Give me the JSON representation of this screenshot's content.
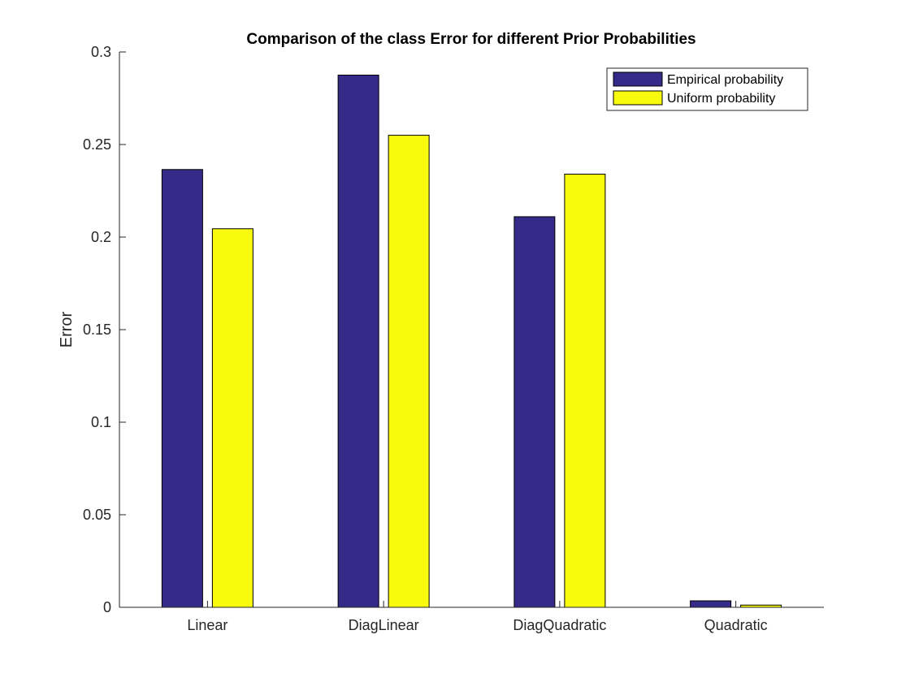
{
  "chart_data": {
    "type": "bar",
    "title": "Comparison of the class Error for different Prior Probabilities",
    "xlabel": "",
    "ylabel": "Error",
    "categories": [
      "Linear",
      "DiagLinear",
      "DiagQuadratic",
      "Quadratic"
    ],
    "series": [
      {
        "name": "Empirical probability",
        "values": [
          0.2365,
          0.2875,
          0.211,
          0.0035
        ],
        "color": "#352a87"
      },
      {
        "name": "Uniform probability",
        "values": [
          0.2045,
          0.255,
          0.234,
          0.0012
        ],
        "color": "#f9fb0e"
      }
    ],
    "ylim": [
      0,
      0.3
    ],
    "yticks": [
      0,
      0.05,
      0.1,
      0.15,
      0.2,
      0.25,
      0.3
    ],
    "ytick_labels": [
      "0",
      "0.05",
      "0.1",
      "0.15",
      "0.2",
      "0.25",
      "0.3"
    ],
    "grid": false,
    "legend_position": "top-right"
  }
}
